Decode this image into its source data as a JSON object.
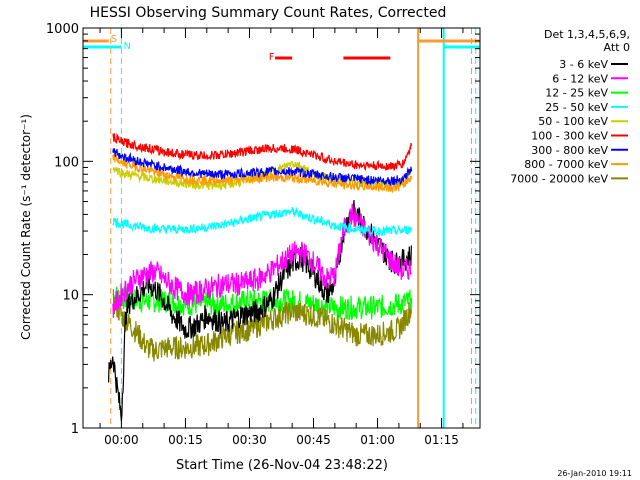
{
  "chart_data": {
    "type": "line",
    "title": "HESSI Observing Summary Count Rates, Corrected",
    "xlabel": "Start Time (26-Nov-04 23:48:22)",
    "ylabel": "Corrected Count Rate (s⁻¹ detector⁻¹)",
    "y_scale": "log",
    "ylim": [
      1,
      1000
    ],
    "xlim_minutes": [
      -9,
      84
    ],
    "y_ticks": [
      {
        "value": 1,
        "label": "1"
      },
      {
        "value": 10,
        "label": "10"
      },
      {
        "value": 100,
        "label": "100"
      },
      {
        "value": 1000,
        "label": "1000"
      }
    ],
    "x_ticks": [
      {
        "value": 0,
        "label": "00:00"
      },
      {
        "value": 15,
        "label": "00:15"
      },
      {
        "value": 30,
        "label": "00:30"
      },
      {
        "value": 45,
        "label": "00:45"
      },
      {
        "value": 60,
        "label": "01:00"
      },
      {
        "value": 75,
        "label": "01:15"
      }
    ],
    "legend": {
      "placement": "top-right",
      "header": [
        "Det 1,3,4,5,6,9,",
        "Att 0"
      ]
    },
    "series": [
      {
        "name": "3 - 6 keV",
        "color": "#000000",
        "points": [
          [
            -3,
            2.5
          ],
          [
            -2,
            3.5
          ],
          [
            -1,
            2
          ],
          [
            0,
            1.2
          ],
          [
            1,
            7
          ],
          [
            2,
            9
          ],
          [
            4,
            10
          ],
          [
            6,
            12
          ],
          [
            8,
            11
          ],
          [
            10,
            9
          ],
          [
            12,
            7
          ],
          [
            15,
            5.5
          ],
          [
            18,
            6
          ],
          [
            20,
            7
          ],
          [
            24,
            6
          ],
          [
            28,
            7
          ],
          [
            32,
            7.5
          ],
          [
            35,
            9
          ],
          [
            38,
            14
          ],
          [
            40,
            17
          ],
          [
            42,
            19
          ],
          [
            44,
            16
          ],
          [
            46,
            13
          ],
          [
            48,
            10
          ],
          [
            50,
            12
          ],
          [
            52,
            30
          ],
          [
            54,
            44
          ],
          [
            56,
            36
          ],
          [
            58,
            30
          ],
          [
            60,
            24
          ],
          [
            62,
            20
          ],
          [
            64,
            17
          ],
          [
            66,
            18
          ],
          [
            68,
            20
          ]
        ]
      },
      {
        "name": "6 - 12 keV",
        "color": "#ff00ff",
        "points": [
          [
            -2,
            8
          ],
          [
            0,
            10
          ],
          [
            2,
            12
          ],
          [
            5,
            14
          ],
          [
            8,
            15
          ],
          [
            10,
            13
          ],
          [
            13,
            11
          ],
          [
            16,
            10
          ],
          [
            20,
            11
          ],
          [
            24,
            12
          ],
          [
            28,
            12
          ],
          [
            32,
            13
          ],
          [
            35,
            15
          ],
          [
            38,
            18
          ],
          [
            40,
            20
          ],
          [
            42,
            21
          ],
          [
            44,
            19
          ],
          [
            46,
            16
          ],
          [
            48,
            13
          ],
          [
            50,
            14
          ],
          [
            52,
            30
          ],
          [
            54,
            40
          ],
          [
            56,
            34
          ],
          [
            58,
            28
          ],
          [
            60,
            24
          ],
          [
            62,
            20
          ],
          [
            64,
            17
          ],
          [
            66,
            15
          ],
          [
            68,
            16
          ]
        ]
      },
      {
        "name": "12 - 25 keV",
        "color": "#00ff00",
        "points": [
          [
            -2,
            10
          ],
          [
            0,
            9.5
          ],
          [
            5,
            9
          ],
          [
            10,
            9
          ],
          [
            15,
            8.5
          ],
          [
            20,
            8.5
          ],
          [
            25,
            8.5
          ],
          [
            30,
            9
          ],
          [
            35,
            9
          ],
          [
            40,
            9
          ],
          [
            45,
            8.5
          ],
          [
            50,
            8
          ],
          [
            55,
            8
          ],
          [
            60,
            8
          ],
          [
            65,
            8.5
          ],
          [
            68,
            9
          ]
        ]
      },
      {
        "name": "25 - 50 keV",
        "color": "#00ffff",
        "points": [
          [
            -2,
            36
          ],
          [
            0,
            34
          ],
          [
            5,
            32
          ],
          [
            10,
            31
          ],
          [
            15,
            31
          ],
          [
            20,
            32
          ],
          [
            25,
            34
          ],
          [
            30,
            37
          ],
          [
            35,
            40
          ],
          [
            40,
            42
          ],
          [
            45,
            37
          ],
          [
            50,
            33
          ],
          [
            55,
            31
          ],
          [
            60,
            30
          ],
          [
            65,
            30
          ],
          [
            68,
            31
          ]
        ]
      },
      {
        "name": "50 - 100 keV",
        "color": "#cccc00",
        "points": [
          [
            -2,
            90
          ],
          [
            0,
            82
          ],
          [
            5,
            76
          ],
          [
            10,
            72
          ],
          [
            15,
            68
          ],
          [
            20,
            66
          ],
          [
            25,
            67
          ],
          [
            30,
            73
          ],
          [
            35,
            82
          ],
          [
            38,
            90
          ],
          [
            40,
            98
          ],
          [
            42,
            92
          ],
          [
            45,
            80
          ],
          [
            50,
            72
          ],
          [
            55,
            70
          ],
          [
            60,
            68
          ],
          [
            64,
            68
          ],
          [
            66,
            70
          ],
          [
            68,
            82
          ]
        ]
      },
      {
        "name": "100 - 300 keV",
        "color": "#ff0000",
        "points": [
          [
            -2,
            152
          ],
          [
            0,
            140
          ],
          [
            5,
            128
          ],
          [
            10,
            118
          ],
          [
            15,
            112
          ],
          [
            20,
            110
          ],
          [
            25,
            113
          ],
          [
            30,
            120
          ],
          [
            35,
            125
          ],
          [
            40,
            124
          ],
          [
            45,
            112
          ],
          [
            50,
            100
          ],
          [
            55,
            94
          ],
          [
            60,
            92
          ],
          [
            64,
            92
          ],
          [
            66,
            96
          ],
          [
            68,
            132
          ]
        ]
      },
      {
        "name": "300 - 800 keV",
        "color": "#0000ff",
        "points": [
          [
            -2,
            120
          ],
          [
            0,
            110
          ],
          [
            5,
            98
          ],
          [
            10,
            90
          ],
          [
            15,
            84
          ],
          [
            20,
            80
          ],
          [
            25,
            80
          ],
          [
            30,
            82
          ],
          [
            35,
            84
          ],
          [
            40,
            84
          ],
          [
            45,
            80
          ],
          [
            50,
            76
          ],
          [
            55,
            74
          ],
          [
            60,
            72
          ],
          [
            64,
            72
          ],
          [
            66,
            74
          ],
          [
            68,
            88
          ]
        ]
      },
      {
        "name": "800 - 7000 keV",
        "color": "#ff9900",
        "points": [
          [
            -2,
            108
          ],
          [
            0,
            98
          ],
          [
            5,
            88
          ],
          [
            10,
            80
          ],
          [
            15,
            74
          ],
          [
            20,
            72
          ],
          [
            25,
            72
          ],
          [
            30,
            74
          ],
          [
            35,
            76
          ],
          [
            40,
            75
          ],
          [
            45,
            72
          ],
          [
            50,
            68
          ],
          [
            55,
            66
          ],
          [
            60,
            64
          ],
          [
            64,
            64
          ],
          [
            66,
            66
          ],
          [
            68,
            78
          ]
        ]
      },
      {
        "name": "7000 - 20000 keV",
        "color": "#888800",
        "points": [
          [
            -2,
            9
          ],
          [
            0,
            7
          ],
          [
            2,
            6
          ],
          [
            4,
            5
          ],
          [
            6,
            4
          ],
          [
            8,
            3.8
          ],
          [
            10,
            4
          ],
          [
            15,
            4
          ],
          [
            20,
            4.2
          ],
          [
            25,
            5
          ],
          [
            30,
            5.5
          ],
          [
            35,
            6.5
          ],
          [
            40,
            7.5
          ],
          [
            45,
            7
          ],
          [
            50,
            6
          ],
          [
            55,
            5
          ],
          [
            60,
            5
          ],
          [
            65,
            5.5
          ],
          [
            68,
            8
          ]
        ]
      }
    ],
    "annotations": {
      "flags": [
        {
          "label": "S",
          "color": "#ff9933"
        },
        {
          "label": "N",
          "color": "#00ffff"
        },
        {
          "label": "F",
          "color": "#ff0000"
        }
      ],
      "flare_intervals": [
        [
          36,
          40
        ],
        [
          52,
          63
        ]
      ],
      "saa_interval": [
        -9,
        -3
      ],
      "night_interval": [
        -9,
        0
      ]
    },
    "grid": false
  },
  "footer_timestamp": "26-Jan-2010 19:11",
  "colors": {
    "background": "#ffffff",
    "axes": "#000000",
    "saa": "#ff9933",
    "night": "#00ffff",
    "flare": "#ff0000"
  }
}
